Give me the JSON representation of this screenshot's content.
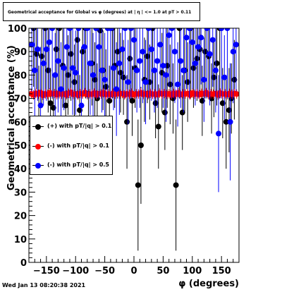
{
  "title": "Geometrical acceptance for Global vs φ (degrees) at | η | <= 1.0 at pT > 0.11",
  "timestamp": "Wed Jan 13 08:20:38 2021",
  "chart_data": {
    "type": "scatter",
    "xlabel": "φ (degrees)",
    "ylabel": "Geometrical acceptance (%)",
    "xlim": [
      -180,
      180
    ],
    "ylim": [
      0,
      100
    ],
    "xticks": [
      -150,
      -100,
      -50,
      0,
      50,
      100,
      150
    ],
    "yticks": [
      0,
      10,
      20,
      30,
      40,
      50,
      60,
      70,
      80,
      90,
      100
    ],
    "grid": false,
    "legend_position": "left",
    "series": [
      {
        "name": "(+) with pT/|q| > 0.1",
        "color": "#000000",
        "x": [
          -172,
          -167,
          -163,
          -158,
          -152,
          -147,
          -143,
          -138,
          -133,
          -128,
          -122,
          -117,
          -113,
          -108,
          -102,
          -97,
          -93,
          -88,
          -83,
          -78,
          -72,
          -67,
          -63,
          -58,
          -53,
          -48,
          -42,
          -37,
          -33,
          -28,
          -23,
          -18,
          -12,
          -7,
          -3,
          2,
          7,
          12,
          18,
          23,
          27,
          32,
          37,
          42,
          48,
          53,
          57,
          62,
          67,
          72,
          78,
          83,
          87,
          92,
          97,
          102,
          108,
          113,
          117,
          122,
          128,
          133,
          137,
          142,
          147,
          152,
          158,
          163,
          167,
          172
        ],
        "y": [
          100,
          89,
          72,
          88,
          100,
          82,
          68,
          66,
          91,
          100,
          84,
          67,
          80,
          89,
          77,
          95,
          65,
          90,
          100,
          72,
          85,
          78,
          70,
          99,
          82,
          75,
          69,
          100,
          84,
          90,
          81,
          79,
          60,
          87,
          69,
          83,
          33,
          50,
          78,
          88,
          77,
          100,
          68,
          58,
          81,
          64,
          84,
          76,
          70,
          33,
          100,
          64,
          82,
          77,
          100,
          83,
          87,
          91,
          69,
          90,
          88,
          70,
          79,
          85,
          100,
          68,
          60,
          65,
          70,
          78
        ],
        "yerr": [
          25,
          15,
          12,
          20,
          30,
          18,
          15,
          14,
          20,
          30,
          18,
          15,
          17,
          20,
          16,
          25,
          15,
          20,
          30,
          14,
          18,
          16,
          15,
          28,
          17,
          16,
          15,
          30,
          18,
          20,
          17,
          16,
          20,
          18,
          15,
          17,
          28,
          25,
          18,
          20,
          16,
          30,
          15,
          18,
          17,
          16,
          18,
          17,
          15,
          28,
          30,
          16,
          18,
          17,
          30,
          17,
          18,
          20,
          15,
          20,
          18,
          15,
          17,
          18,
          30,
          15,
          20,
          18,
          15,
          17
        ]
      },
      {
        "name": "(-) with pT/|q| > 0.1",
        "color": "#ff0000",
        "x": [
          -176,
          -172,
          -168,
          -164,
          -160,
          -156,
          -152,
          -148,
          -144,
          -140,
          -136,
          -132,
          -128,
          -124,
          -120,
          -116,
          -112,
          -108,
          -104,
          -100,
          -96,
          -92,
          -88,
          -84,
          -80,
          -76,
          -72,
          -68,
          -64,
          -60,
          -56,
          -52,
          -48,
          -44,
          -40,
          -36,
          -32,
          -28,
          -24,
          -20,
          -16,
          -12,
          -8,
          -4,
          0,
          4,
          8,
          12,
          16,
          20,
          24,
          28,
          32,
          36,
          40,
          44,
          48,
          52,
          56,
          60,
          64,
          68,
          72,
          76,
          80,
          84,
          88,
          92,
          96,
          100,
          104,
          108,
          112,
          116,
          120,
          124,
          128,
          132,
          136,
          140,
          144,
          148,
          152,
          156,
          160,
          164,
          168,
          172,
          176
        ],
        "y": [
          72,
          71.5,
          72.2,
          71.8,
          72.5,
          71.3,
          72,
          71.7,
          72.4,
          71.9,
          72.1,
          71.6,
          72.3,
          71.8,
          72,
          71.5,
          72.2,
          72.6,
          71.7,
          72,
          71.4,
          72.1,
          71.9,
          72.5,
          71.6,
          72,
          71.8,
          72.3,
          71.5,
          72.1,
          71.9,
          72.4,
          71.7,
          72,
          71.6,
          72.2,
          71.8,
          72.5,
          71.9,
          72.1,
          71.5,
          72,
          71.8,
          72.3,
          71.6,
          72,
          71.9,
          72.4,
          71.7,
          72.1,
          71.5,
          72.2,
          71.8,
          72,
          71.6,
          72.3,
          71.9,
          72.1,
          71.7,
          72,
          71.5,
          72.2,
          71.8,
          72.4,
          71.6,
          72,
          71.9,
          72.1,
          71.5,
          72.3,
          71.8,
          72,
          71.6,
          72.2,
          71.9,
          72.5,
          71.7,
          72,
          71.8,
          72.1,
          71.5,
          72.3,
          71.9,
          72,
          71.6,
          72.2,
          71.8,
          72.1,
          71.9
        ],
        "yerr": [
          2,
          2,
          2,
          2,
          2,
          2,
          2,
          2,
          2,
          2,
          2,
          2,
          2,
          2,
          2,
          2,
          2,
          2,
          2,
          2,
          2,
          2,
          2,
          2,
          2,
          2,
          2,
          2,
          2,
          2,
          2,
          2,
          2,
          2,
          2,
          2,
          2,
          2,
          2,
          2,
          2,
          2,
          2,
          2,
          2,
          2,
          2,
          2,
          2,
          2,
          2,
          2,
          2,
          2,
          2,
          2,
          2,
          2,
          2,
          2,
          2,
          2,
          2,
          2,
          2,
          2,
          2,
          2,
          2,
          2,
          2,
          2,
          2,
          2,
          2,
          2,
          2,
          2,
          2,
          2,
          2,
          2,
          2,
          2,
          2,
          2,
          2,
          2,
          2
        ]
      },
      {
        "name": "(-) with pT/|q| > 0.5",
        "color": "#0000ff",
        "x": [
          -175,
          -170,
          -165,
          -160,
          -155,
          -150,
          -145,
          -140,
          -135,
          -130,
          -125,
          -120,
          -115,
          -110,
          -105,
          -100,
          -95,
          -90,
          -85,
          -80,
          -75,
          -70,
          -65,
          -60,
          -55,
          -50,
          -45,
          -40,
          -35,
          -30,
          -25,
          -20,
          -15,
          -10,
          -5,
          0,
          5,
          10,
          15,
          20,
          25,
          30,
          35,
          40,
          45,
          50,
          55,
          60,
          65,
          70,
          75,
          80,
          85,
          90,
          95,
          100,
          105,
          110,
          115,
          120,
          125,
          130,
          135,
          140,
          145,
          150,
          155,
          160,
          165,
          170,
          175
        ],
        "y": [
          93,
          82,
          91,
          67,
          85,
          91,
          94,
          100,
          80,
          86,
          74,
          83,
          92,
          100,
          83,
          81,
          100,
          67,
          92,
          100,
          85,
          80,
          100,
          92,
          82,
          78,
          100,
          100,
          83,
          74,
          85,
          91,
          100,
          77,
          100,
          95,
          82,
          86,
          90,
          77,
          100,
          91,
          82,
          86,
          93,
          84,
          80,
          97,
          100,
          90,
          76,
          86,
          82,
          96,
          100,
          94,
          85,
          92,
          96,
          78,
          100,
          89,
          95,
          82,
          55,
          100,
          79,
          100,
          60,
          90,
          93
        ],
        "yerr": [
          20,
          30,
          22,
          25,
          18,
          22,
          20,
          30,
          18,
          22,
          20,
          18,
          22,
          30,
          20,
          18,
          30,
          25,
          20,
          30,
          22,
          18,
          30,
          22,
          18,
          20,
          30,
          30,
          18,
          20,
          22,
          20,
          30,
          18,
          30,
          22,
          18,
          20,
          22,
          18,
          30,
          22,
          18,
          20,
          22,
          18,
          20,
          22,
          30,
          22,
          18,
          20,
          18,
          22,
          30,
          20,
          18,
          22,
          20,
          18,
          30,
          22,
          20,
          18,
          25,
          30,
          18,
          30,
          25,
          22,
          20
        ]
      }
    ]
  }
}
